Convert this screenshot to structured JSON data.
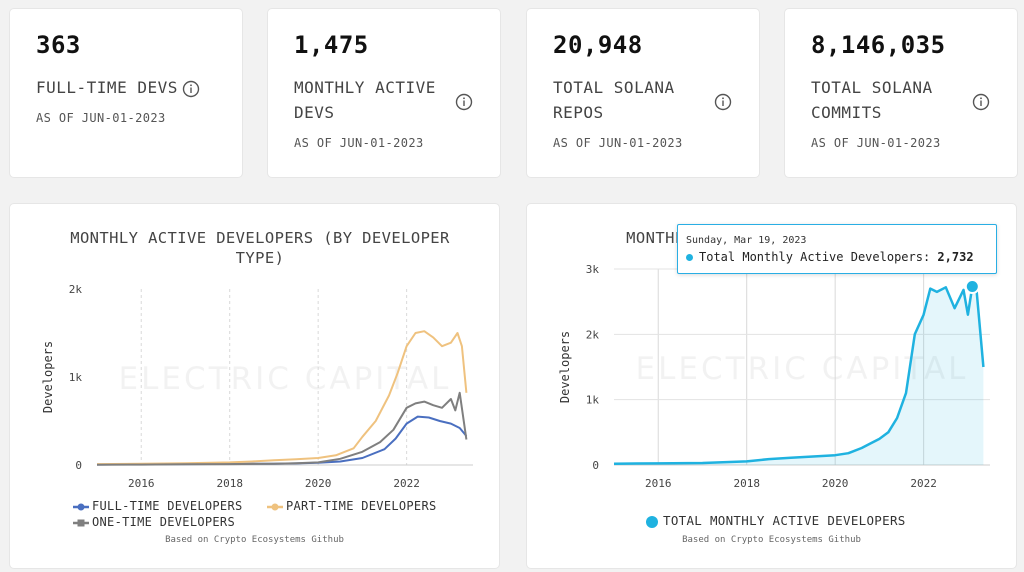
{
  "stats": [
    {
      "value": "363",
      "label": "FULL-TIME DEVS",
      "date": "AS OF JUN-01-2023",
      "icon": "info-icon"
    },
    {
      "value": "1,475",
      "label": "MONTHLY ACTIVE DEVS",
      "date": "AS OF JUN-01-2023",
      "icon": "info-icon"
    },
    {
      "value": "20,948",
      "label": "TOTAL SOLANA REPOS",
      "date": "AS OF JUN-01-2023",
      "icon": "info-icon"
    },
    {
      "value": "8,146,035",
      "label": "TOTAL SOLANA COMMITS",
      "date": "AS OF JUN-01-2023",
      "icon": "info-icon"
    }
  ],
  "watermark": "ELECTRIC CAPITAL",
  "chart_data": [
    {
      "type": "line",
      "title": "MONTHLY ACTIVE DEVELOPERS (BY DEVELOPER TYPE)",
      "ylabel": "Developers",
      "xlabel": "",
      "xlim": [
        2015.0,
        2023.5
      ],
      "ylim": [
        0,
        2000
      ],
      "x_ticks": [
        2016,
        2018,
        2020,
        2022
      ],
      "x_tick_labels": [
        "2016",
        "2018",
        "2020",
        "2022"
      ],
      "y_ticks": [
        0,
        1000,
        2000
      ],
      "y_tick_labels": [
        "0",
        "1k",
        "2k"
      ],
      "grid": "vertical dashed",
      "legend_position": "bottom",
      "source": "Based on Crypto Ecosystems Github",
      "series": [
        {
          "name": "FULL-TIME DEVELOPERS",
          "color": "#4a6fc0",
          "x": [
            2015.0,
            2016.0,
            2017.0,
            2018.0,
            2019.0,
            2019.5,
            2020.0,
            2020.5,
            2021.0,
            2021.5,
            2021.75,
            2022.0,
            2022.25,
            2022.5,
            2022.75,
            2023.0,
            2023.2,
            2023.35
          ],
          "y": [
            5,
            8,
            10,
            12,
            15,
            18,
            25,
            40,
            80,
            180,
            300,
            470,
            550,
            540,
            500,
            470,
            420,
            330
          ]
        },
        {
          "name": "PART-TIME DEVELOPERS",
          "color": "#efc27f",
          "x": [
            2015.0,
            2016.0,
            2017.0,
            2018.0,
            2018.5,
            2019.0,
            2019.5,
            2020.0,
            2020.4,
            2020.8,
            2021.0,
            2021.3,
            2021.6,
            2021.8,
            2022.0,
            2022.2,
            2022.4,
            2022.6,
            2022.8,
            2023.0,
            2023.15,
            2023.25,
            2023.35
          ],
          "y": [
            10,
            15,
            20,
            30,
            40,
            55,
            65,
            80,
            110,
            190,
            320,
            500,
            790,
            1050,
            1350,
            1500,
            1520,
            1450,
            1350,
            1390,
            1500,
            1350,
            820
          ]
        },
        {
          "name": "ONE-TIME DEVELOPERS",
          "color": "#7f7f7f",
          "x": [
            2015.0,
            2016.0,
            2017.0,
            2018.0,
            2019.0,
            2019.5,
            2020.0,
            2020.5,
            2021.0,
            2021.4,
            2021.7,
            2022.0,
            2022.2,
            2022.4,
            2022.6,
            2022.8,
            2023.0,
            2023.1,
            2023.2,
            2023.35
          ],
          "y": [
            3,
            5,
            8,
            10,
            15,
            20,
            30,
            70,
            150,
            260,
            400,
            650,
            700,
            720,
            680,
            650,
            750,
            620,
            820,
            290
          ]
        }
      ]
    },
    {
      "type": "area",
      "title": "MONTHLY ACTIVE DEVELOPERS (ALL)",
      "ylabel": "Developers",
      "xlabel": "",
      "xlim": [
        2015.0,
        2023.5
      ],
      "ylim": [
        0,
        3000
      ],
      "x_ticks": [
        2016,
        2018,
        2020,
        2022
      ],
      "x_tick_labels": [
        "2016",
        "2018",
        "2020",
        "2022"
      ],
      "y_ticks": [
        0,
        1000,
        2000,
        3000
      ],
      "y_tick_labels": [
        "0",
        "1k",
        "2k",
        "3k"
      ],
      "grid": "vertical and horizontal",
      "legend_position": "bottom",
      "source": "Based on Crypto Ecosystems Github",
      "series": [
        {
          "name": "TOTAL MONTHLY ACTIVE DEVELOPERS",
          "color": "#1fb2e0",
          "x": [
            2015.0,
            2016.0,
            2017.0,
            2018.0,
            2018.5,
            2019.0,
            2019.5,
            2020.0,
            2020.3,
            2020.6,
            2020.8,
            2021.0,
            2021.2,
            2021.4,
            2021.6,
            2021.8,
            2022.0,
            2022.15,
            2022.3,
            2022.5,
            2022.7,
            2022.9,
            2023.0,
            2023.1,
            2023.2,
            2023.35
          ],
          "y": [
            20,
            25,
            30,
            55,
            90,
            110,
            130,
            150,
            180,
            260,
            330,
            400,
            500,
            720,
            1100,
            2000,
            2300,
            2700,
            2650,
            2720,
            2400,
            2680,
            2300,
            2732,
            2650,
            1500
          ]
        }
      ],
      "tooltip": {
        "date": "Sunday, Mar 19, 2023",
        "series": "Total Monthly Active Developers:",
        "value": "2,732"
      }
    }
  ]
}
